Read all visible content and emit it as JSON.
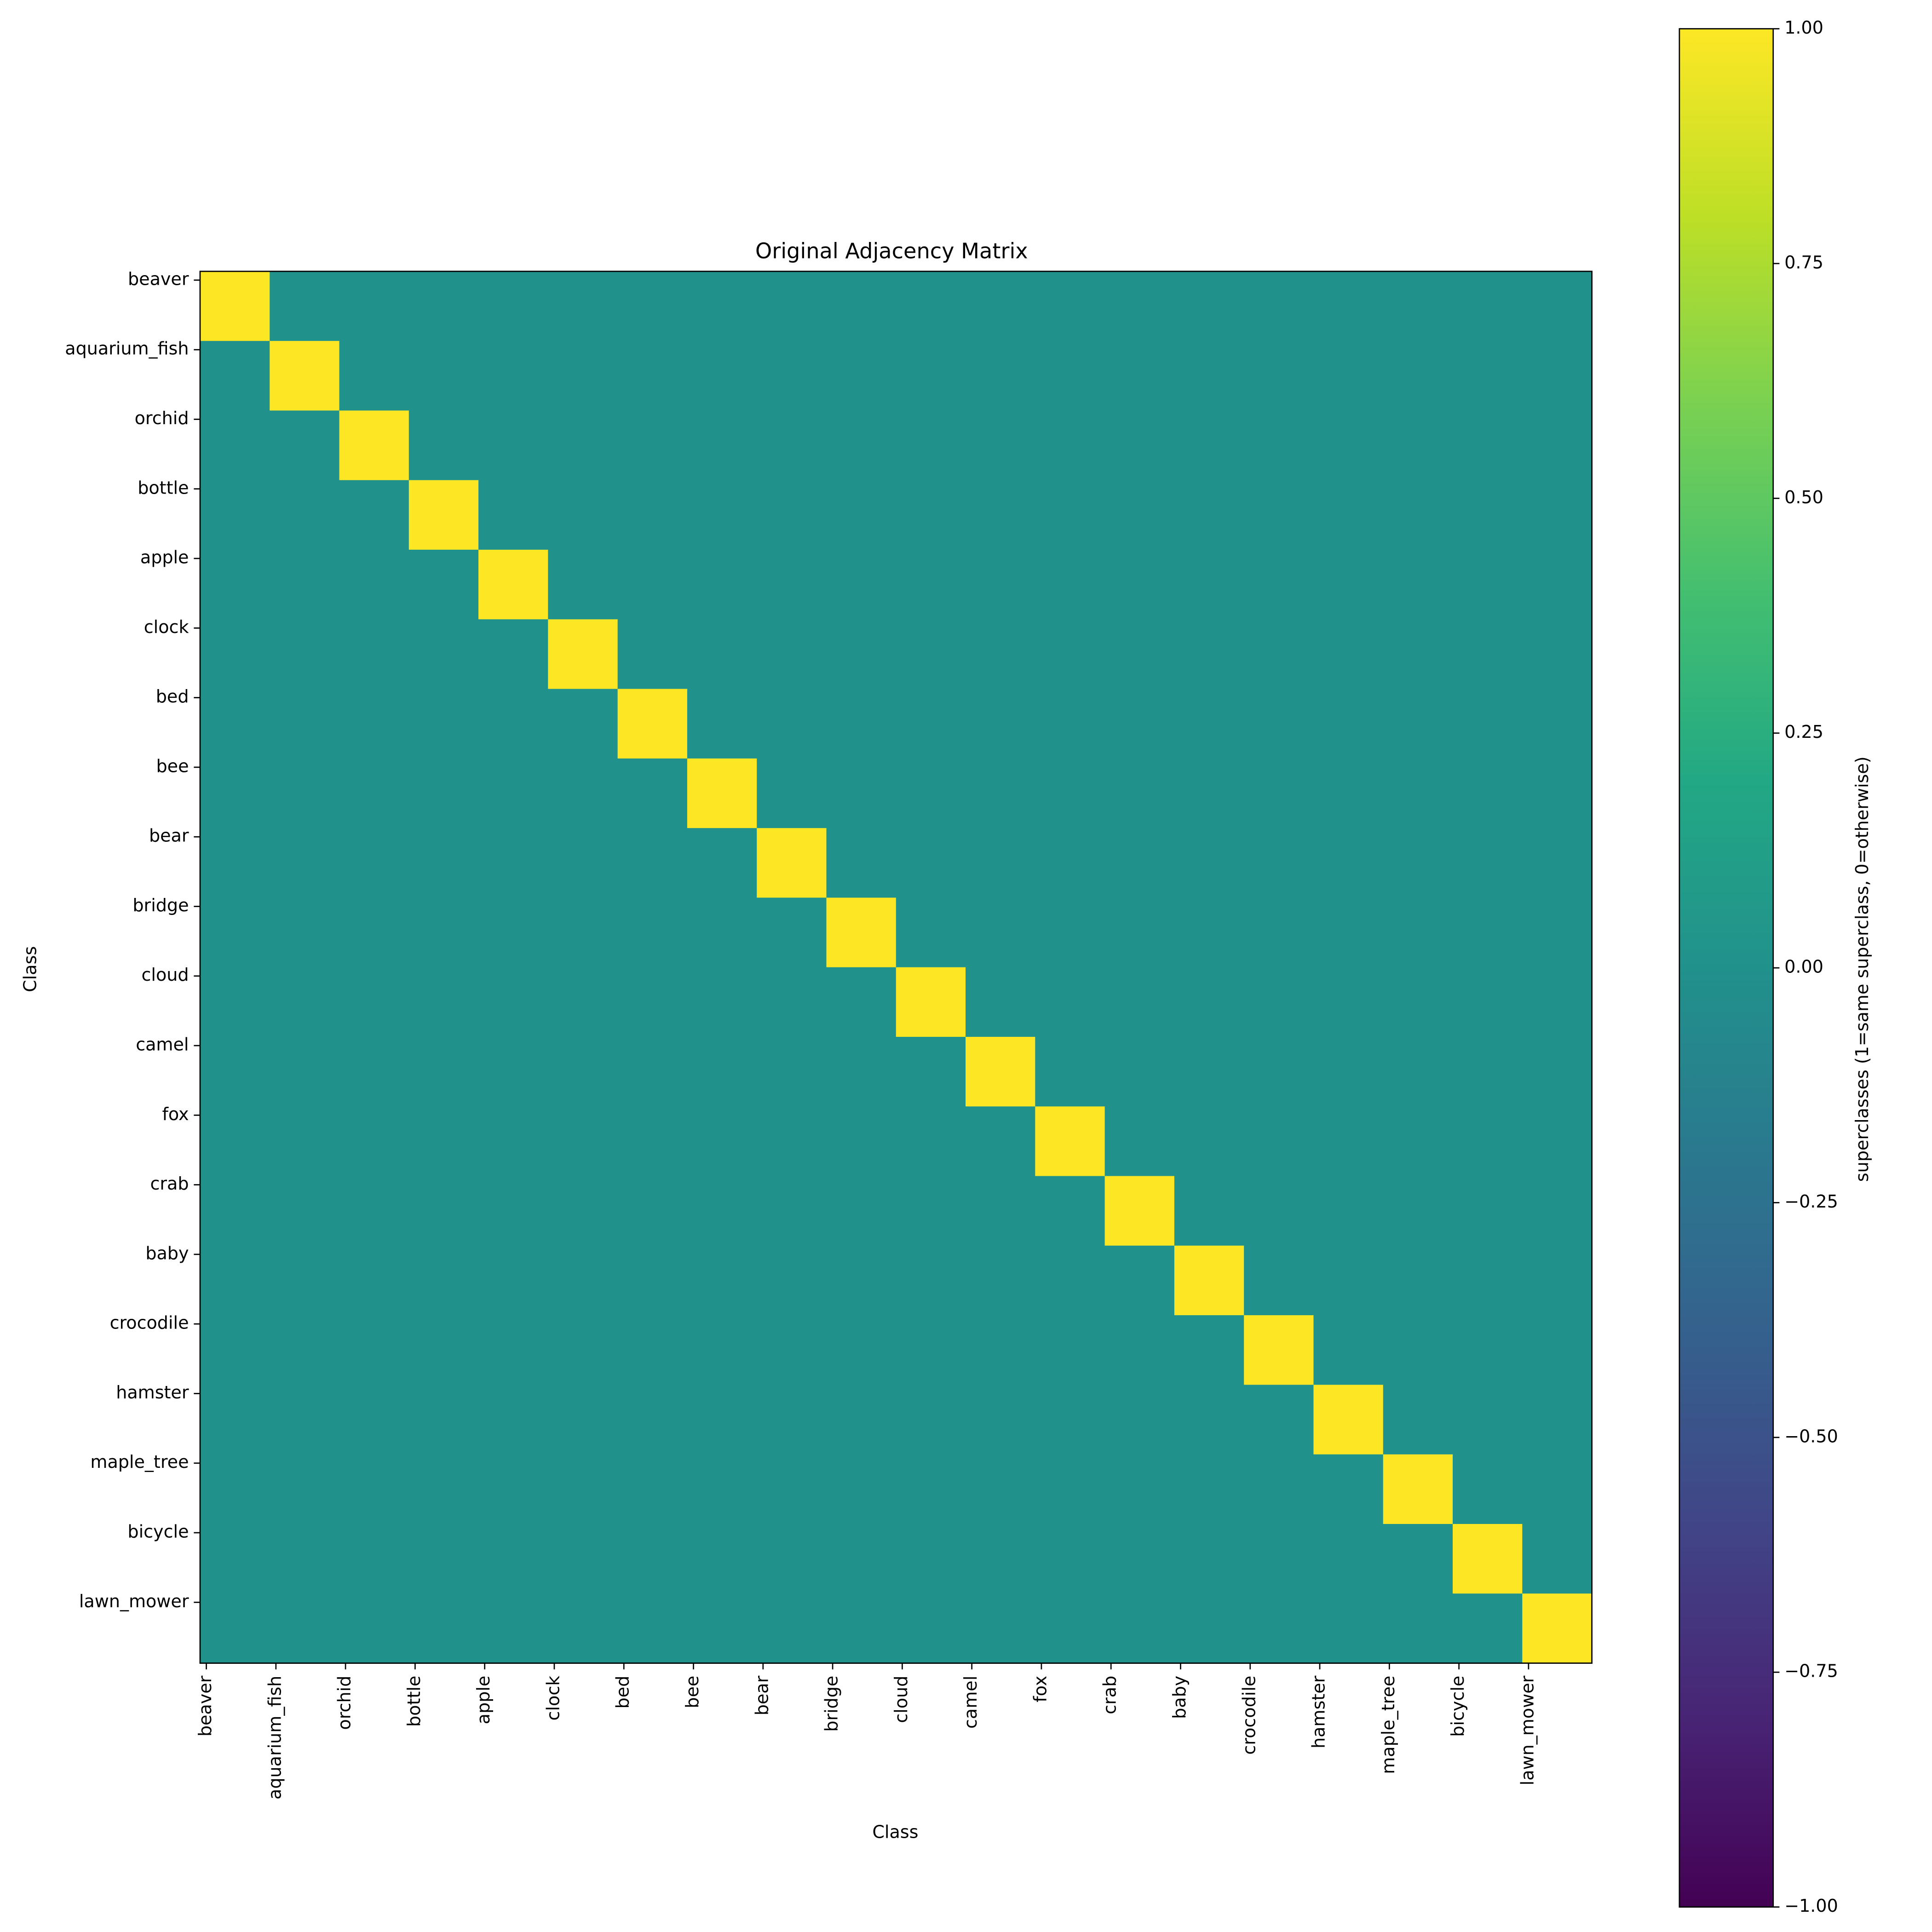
{
  "chart_data": {
    "type": "heatmap",
    "title": "Original Adjacency Matrix",
    "x_label": "Class",
    "y_label": "Class",
    "x_categories": [
      "beaver",
      "aquarium_fish",
      "orchid",
      "bottle",
      "apple",
      "clock",
      "bed",
      "bee",
      "bear",
      "bridge",
      "cloud",
      "camel",
      "fox",
      "crab",
      "baby",
      "crocodile",
      "hamster",
      "maple_tree",
      "bicycle",
      "lawn_mower"
    ],
    "y_categories": [
      "beaver",
      "aquarium_fish",
      "orchid",
      "bottle",
      "apple",
      "clock",
      "bed",
      "bee",
      "bear",
      "bridge",
      "cloud",
      "camel",
      "fox",
      "crab",
      "baby",
      "crocodile",
      "hamster",
      "maple_tree",
      "bicycle",
      "lawn_mower"
    ],
    "values": [
      [
        1,
        0,
        0,
        0,
        0,
        0,
        0,
        0,
        0,
        0,
        0,
        0,
        0,
        0,
        0,
        0,
        0,
        0,
        0,
        0
      ],
      [
        0,
        1,
        0,
        0,
        0,
        0,
        0,
        0,
        0,
        0,
        0,
        0,
        0,
        0,
        0,
        0,
        0,
        0,
        0,
        0
      ],
      [
        0,
        0,
        1,
        0,
        0,
        0,
        0,
        0,
        0,
        0,
        0,
        0,
        0,
        0,
        0,
        0,
        0,
        0,
        0,
        0
      ],
      [
        0,
        0,
        0,
        1,
        0,
        0,
        0,
        0,
        0,
        0,
        0,
        0,
        0,
        0,
        0,
        0,
        0,
        0,
        0,
        0
      ],
      [
        0,
        0,
        0,
        0,
        1,
        0,
        0,
        0,
        0,
        0,
        0,
        0,
        0,
        0,
        0,
        0,
        0,
        0,
        0,
        0
      ],
      [
        0,
        0,
        0,
        0,
        0,
        1,
        0,
        0,
        0,
        0,
        0,
        0,
        0,
        0,
        0,
        0,
        0,
        0,
        0,
        0
      ],
      [
        0,
        0,
        0,
        0,
        0,
        0,
        1,
        0,
        0,
        0,
        0,
        0,
        0,
        0,
        0,
        0,
        0,
        0,
        0,
        0
      ],
      [
        0,
        0,
        0,
        0,
        0,
        0,
        0,
        1,
        0,
        0,
        0,
        0,
        0,
        0,
        0,
        0,
        0,
        0,
        0,
        0
      ],
      [
        0,
        0,
        0,
        0,
        0,
        0,
        0,
        0,
        1,
        0,
        0,
        0,
        0,
        0,
        0,
        0,
        0,
        0,
        0,
        0
      ],
      [
        0,
        0,
        0,
        0,
        0,
        0,
        0,
        0,
        0,
        1,
        0,
        0,
        0,
        0,
        0,
        0,
        0,
        0,
        0,
        0
      ],
      [
        0,
        0,
        0,
        0,
        0,
        0,
        0,
        0,
        0,
        0,
        1,
        0,
        0,
        0,
        0,
        0,
        0,
        0,
        0,
        0
      ],
      [
        0,
        0,
        0,
        0,
        0,
        0,
        0,
        0,
        0,
        0,
        0,
        1,
        0,
        0,
        0,
        0,
        0,
        0,
        0,
        0
      ],
      [
        0,
        0,
        0,
        0,
        0,
        0,
        0,
        0,
        0,
        0,
        0,
        0,
        1,
        0,
        0,
        0,
        0,
        0,
        0,
        0
      ],
      [
        0,
        0,
        0,
        0,
        0,
        0,
        0,
        0,
        0,
        0,
        0,
        0,
        0,
        1,
        0,
        0,
        0,
        0,
        0,
        0
      ],
      [
        0,
        0,
        0,
        0,
        0,
        0,
        0,
        0,
        0,
        0,
        0,
        0,
        0,
        0,
        1,
        0,
        0,
        0,
        0,
        0
      ],
      [
        0,
        0,
        0,
        0,
        0,
        0,
        0,
        0,
        0,
        0,
        0,
        0,
        0,
        0,
        0,
        1,
        0,
        0,
        0,
        0
      ],
      [
        0,
        0,
        0,
        0,
        0,
        0,
        0,
        0,
        0,
        0,
        0,
        0,
        0,
        0,
        0,
        0,
        1,
        0,
        0,
        0
      ],
      [
        0,
        0,
        0,
        0,
        0,
        0,
        0,
        0,
        0,
        0,
        0,
        0,
        0,
        0,
        0,
        0,
        0,
        1,
        0,
        0
      ],
      [
        0,
        0,
        0,
        0,
        0,
        0,
        0,
        0,
        0,
        0,
        0,
        0,
        0,
        0,
        0,
        0,
        0,
        0,
        1,
        0
      ],
      [
        0,
        0,
        0,
        0,
        0,
        0,
        0,
        0,
        0,
        0,
        0,
        0,
        0,
        0,
        0,
        0,
        0,
        0,
        0,
        1
      ]
    ],
    "colormap": "viridis",
    "colorbar": {
      "label": "superclasses (1=same superclass, 0=otherwise)",
      "lim": [
        -1,
        1
      ],
      "ticks": [
        {
          "value": -1,
          "label": "−1.00"
        },
        {
          "value": -0.75,
          "label": "−0.75"
        },
        {
          "value": -0.5,
          "label": "−0.50"
        },
        {
          "value": -0.25,
          "label": "−0.25"
        },
        {
          "value": 0,
          "label": "0.00"
        },
        {
          "value": 0.25,
          "label": "0.25"
        },
        {
          "value": 0.5,
          "label": "0.50"
        },
        {
          "value": 0.75,
          "label": "0.75"
        },
        {
          "value": 1,
          "label": "1.00"
        }
      ]
    }
  }
}
